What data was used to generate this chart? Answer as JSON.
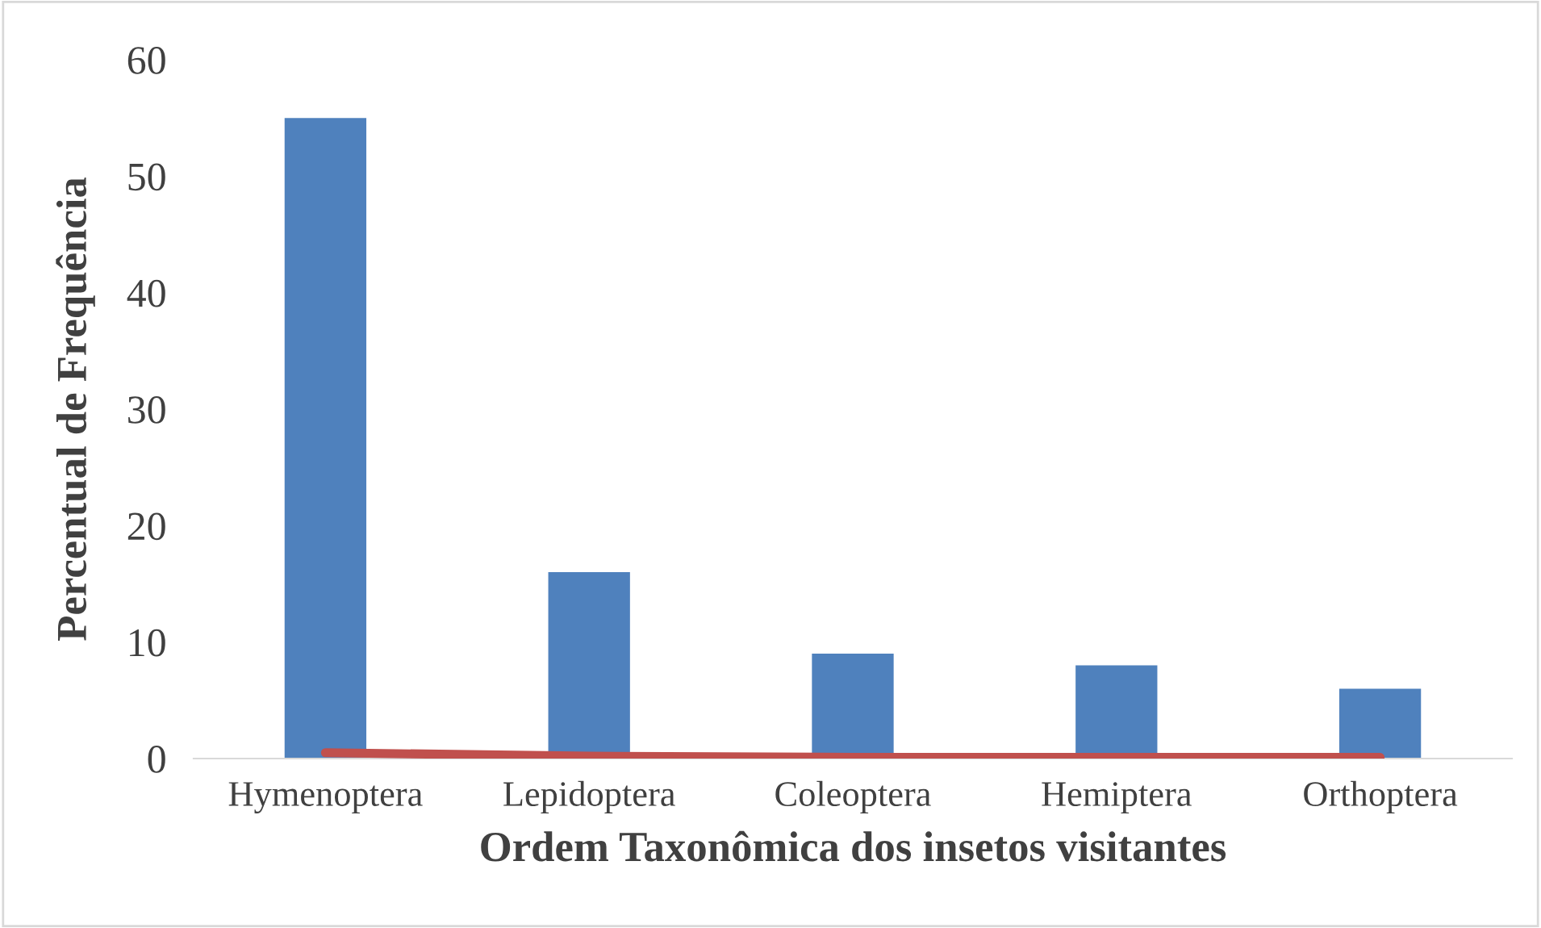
{
  "chart_data": {
    "type": "bar",
    "xlabel": "Ordem Taxonômica dos insetos visitantes",
    "ylabel": "Percentual de Frequência",
    "categories": [
      "Hymenoptera",
      "Lepidoptera",
      "Coleoptera",
      "Hemiptera",
      "Orthoptera"
    ],
    "series": [
      {
        "color": "#4f81bd",
        "values": [
          55,
          16,
          9,
          8,
          6
        ]
      },
      {
        "type": "line",
        "color": "#c0504d",
        "values": [
          0.5,
          0.2,
          0.1,
          0.1,
          0.1
        ]
      }
    ],
    "ylim": [
      0,
      60
    ],
    "yticks": [
      0,
      10,
      20,
      30,
      40,
      50,
      60
    ],
    "grid": false,
    "legend": false
  }
}
